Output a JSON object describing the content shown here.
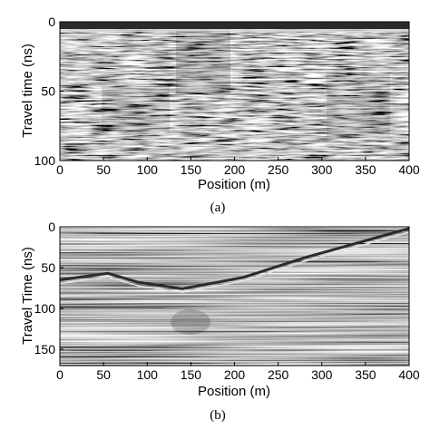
{
  "chart_data": [
    {
      "type": "heatmap",
      "panel_label": "(a)",
      "xlabel": "Position (m)",
      "ylabel": "Travel time (ns)",
      "xlim": [
        0,
        400
      ],
      "ylim": [
        100,
        0
      ],
      "xticks": [
        "0",
        "50",
        "100",
        "150",
        "200",
        "250",
        "300",
        "350",
        "400"
      ],
      "yticks": [
        "0",
        "50",
        "100"
      ],
      "colormap": "grayscale"
    },
    {
      "type": "heatmap",
      "panel_label": "(b)",
      "xlabel": "Position (m)",
      "ylabel": "Travel Time (ns)",
      "xlim": [
        0,
        400
      ],
      "ylim": [
        170,
        0
      ],
      "xticks": [
        "0",
        "50",
        "100",
        "150",
        "200",
        "250",
        "300",
        "350",
        "400"
      ],
      "yticks": [
        "0",
        "50",
        "100",
        "150"
      ],
      "surface_ns": [
        {
          "x": 0,
          "t": 65
        },
        {
          "x": 55,
          "t": 57
        },
        {
          "x": 90,
          "t": 68
        },
        {
          "x": 140,
          "t": 76
        },
        {
          "x": 210,
          "t": 62
        },
        {
          "x": 280,
          "t": 38
        },
        {
          "x": 400,
          "t": 2
        }
      ],
      "colormap": "grayscale"
    }
  ]
}
